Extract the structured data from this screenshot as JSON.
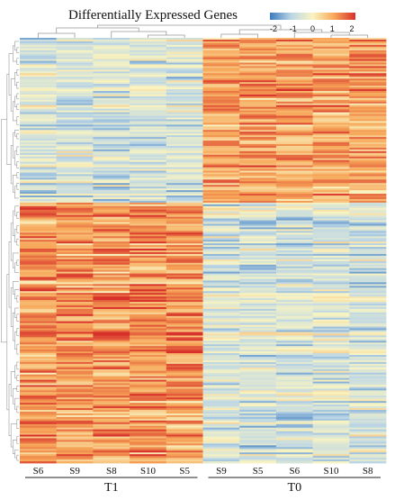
{
  "chart_data": {
    "type": "heatmap",
    "title": "Differentially Expressed Genes",
    "columns": [
      "S6",
      "S9",
      "S8",
      "S10",
      "S5",
      "S9",
      "S5",
      "S6",
      "S10",
      "S8"
    ],
    "groups": [
      {
        "label": "T1",
        "columns": [
          "S6",
          "S9",
          "S8",
          "S10",
          "S5"
        ]
      },
      {
        "label": "T0",
        "columns": [
          "S9",
          "S5",
          "S6",
          "S10",
          "S8"
        ]
      }
    ],
    "color_scale": {
      "min": -2,
      "max": 2,
      "ticks": [
        "-2",
        "-1",
        "0",
        "1",
        "2"
      ],
      "colors": [
        "#3b7bbf",
        "#bcd6e6",
        "#f9f4c2",
        "#f7a85a",
        "#d7302a"
      ]
    },
    "row_dendrogram": true,
    "column_dendrogram": true,
    "pattern": {
      "upper_block": {
        "T1": -0.6,
        "T0": 1.0
      },
      "lower_block": {
        "T1": 1.1,
        "T0": -0.6
      }
    }
  }
}
